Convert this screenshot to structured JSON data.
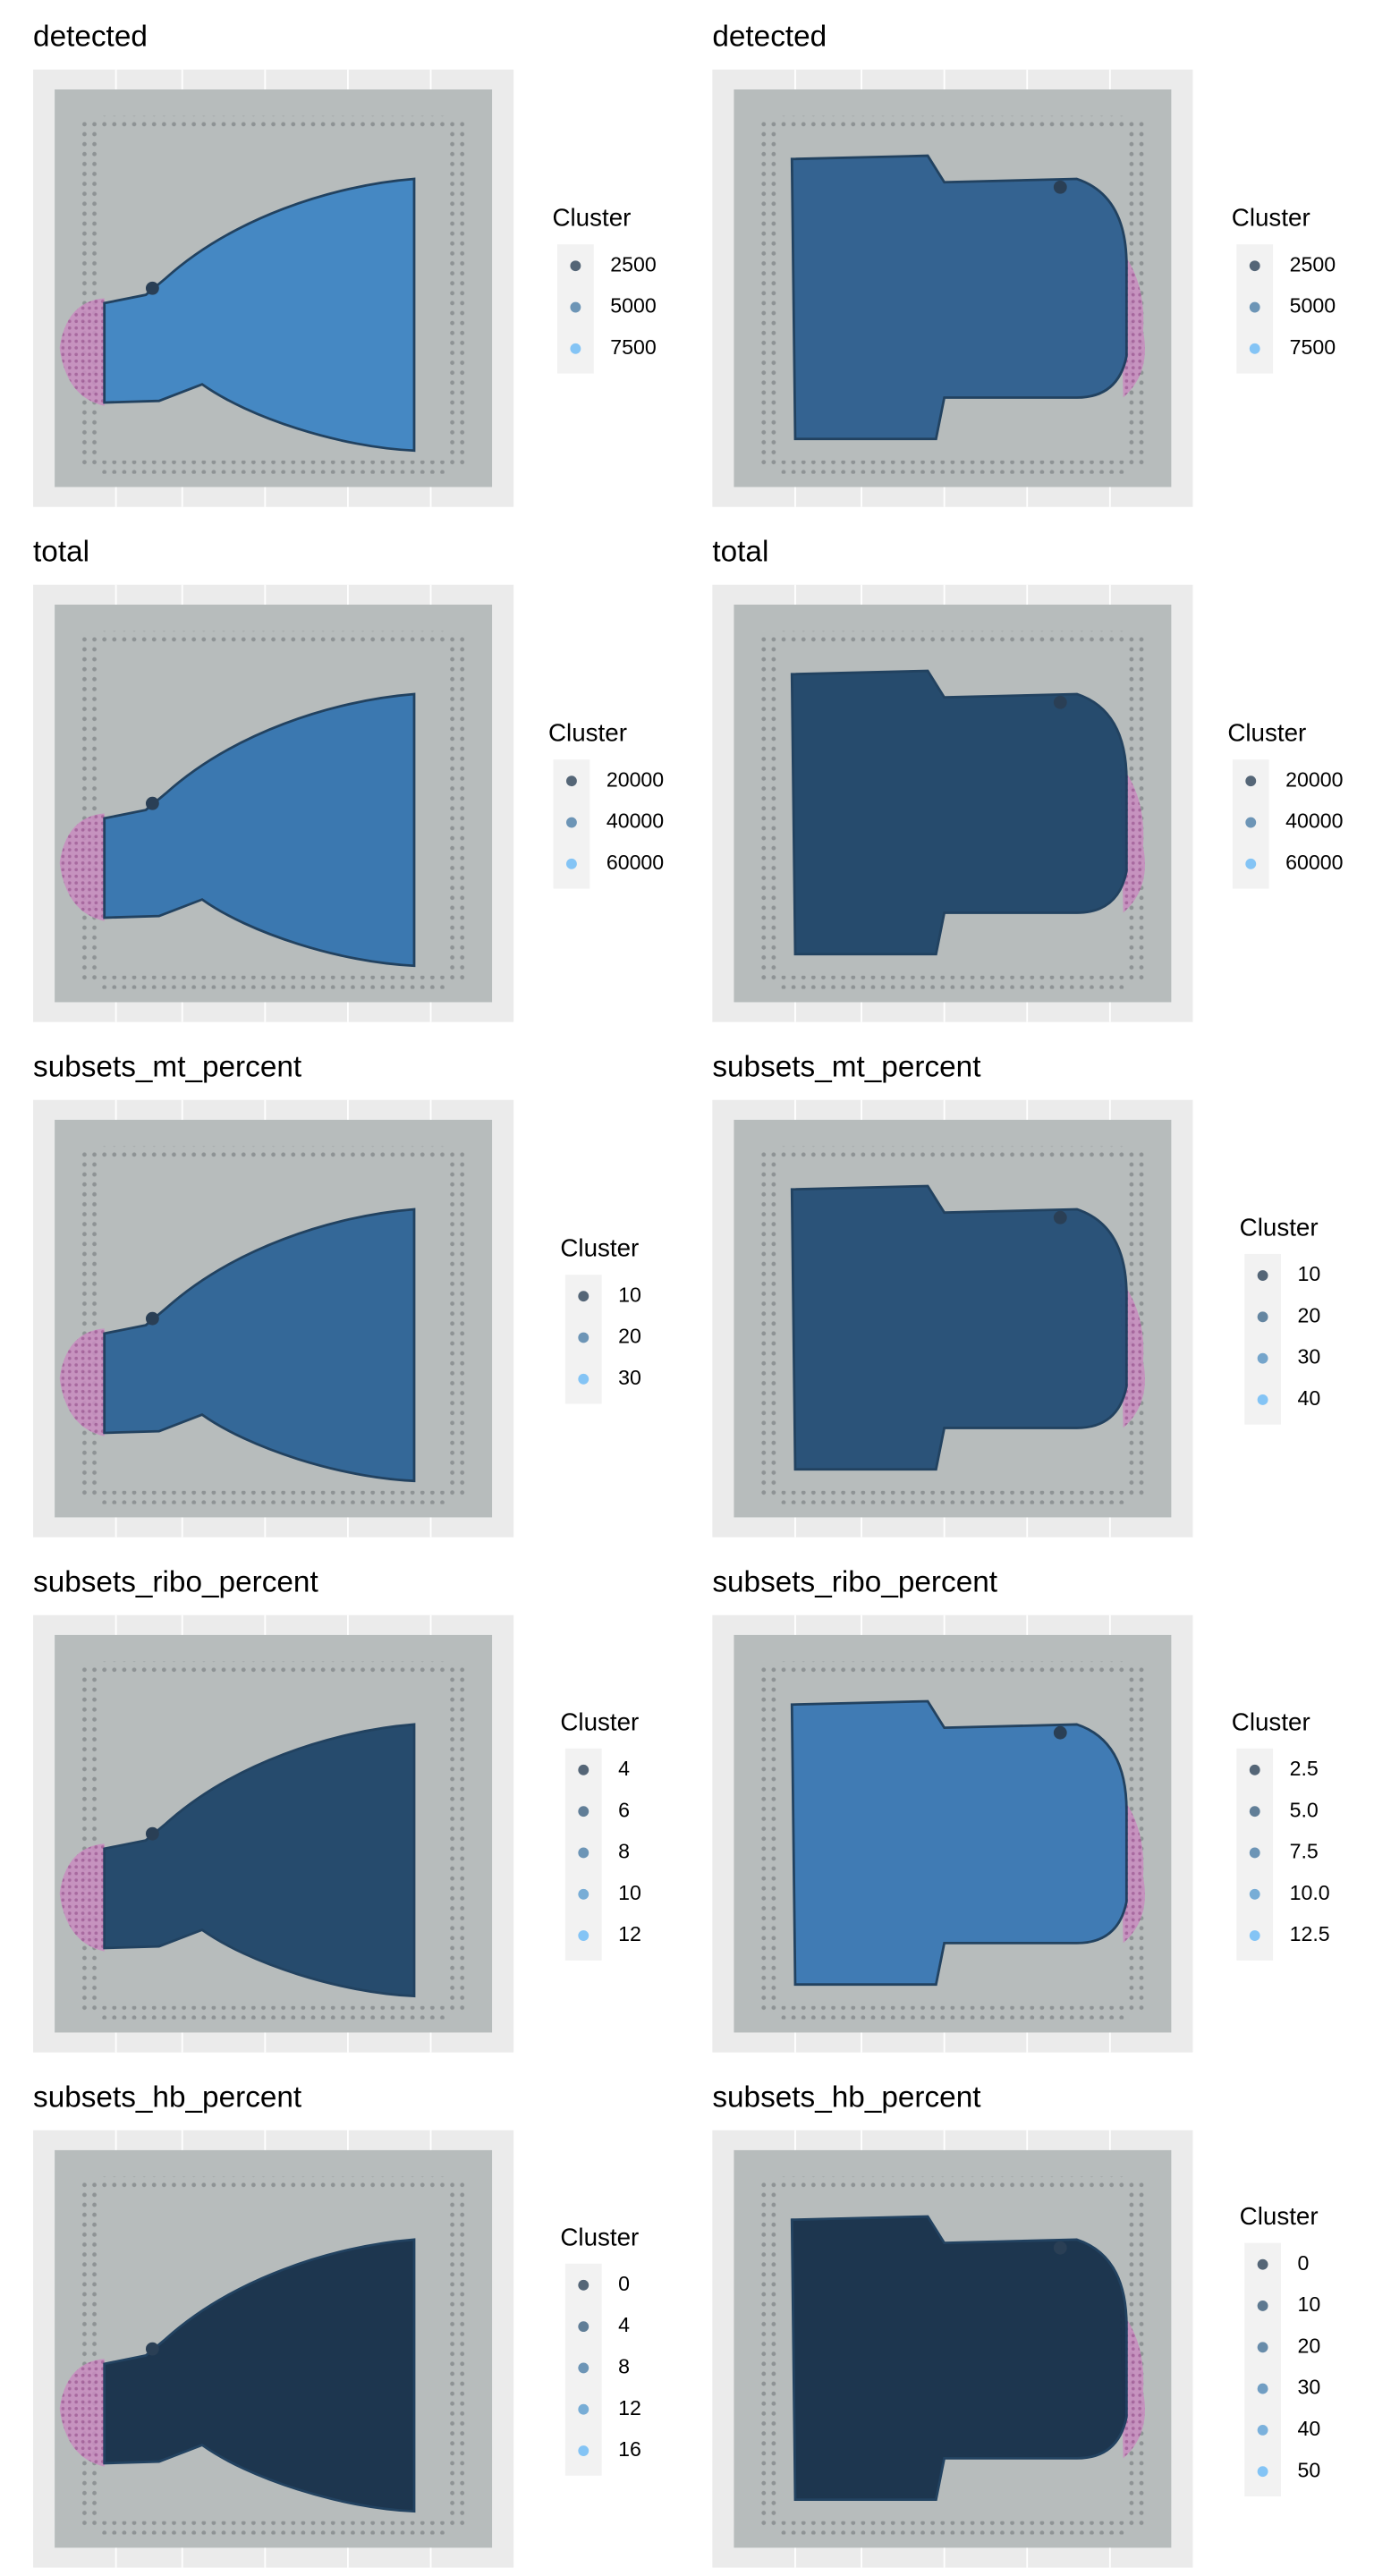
{
  "panels": [
    {
      "title": "detected",
      "legend_title": "Cluster",
      "legend_values": [
        2500,
        5000,
        7500
      ]
    },
    {
      "title": "detected",
      "legend_title": "Cluster",
      "legend_values": [
        2500,
        5000,
        7500
      ]
    },
    {
      "title": "total",
      "legend_title": "Cluster",
      "legend_values": [
        20000,
        40000,
        60000
      ]
    },
    {
      "title": "total",
      "legend_title": "Cluster",
      "legend_values": [
        20000,
        40000,
        60000
      ]
    },
    {
      "title": "subsets_mt_percent",
      "legend_title": "Cluster",
      "legend_values": [
        10,
        20,
        30
      ]
    },
    {
      "title": "subsets_mt_percent",
      "legend_title": "Cluster",
      "legend_values": [
        10,
        20,
        30,
        40
      ]
    },
    {
      "title": "subsets_ribo_percent",
      "legend_title": "Cluster",
      "legend_values": [
        4,
        6,
        8,
        10,
        12
      ]
    },
    {
      "title": "subsets_ribo_percent",
      "legend_title": "Cluster",
      "legend_values": [
        {
          "value": 2.5,
          "label": "2.5"
        },
        {
          "value": 5,
          "label": "5.0"
        },
        {
          "value": 7.5,
          "label": "7.5"
        },
        {
          "value": 10,
          "label": "10.0"
        },
        {
          "value": 12.5,
          "label": "12.5"
        }
      ]
    },
    {
      "title": "subsets_hb_percent",
      "legend_title": "Cluster",
      "legend_values": [
        0,
        4,
        8,
        12,
        16
      ]
    },
    {
      "title": "subsets_hb_percent",
      "legend_title": "Cluster",
      "legend_values": [
        0,
        10,
        20,
        30,
        40,
        50
      ]
    }
  ]
}
